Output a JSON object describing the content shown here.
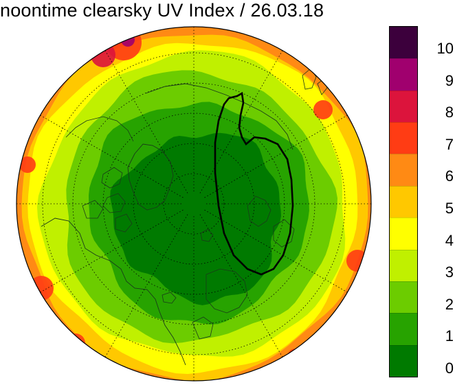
{
  "title": "noontime clearsky UV Index / 26.03.18",
  "legend": {
    "levels": [
      {
        "value": "0",
        "color": "#007a00"
      },
      {
        "value": "1",
        "color": "#27a300"
      },
      {
        "value": "2",
        "color": "#6ccc00"
      },
      {
        "value": "3",
        "color": "#c0f000"
      },
      {
        "value": "4",
        "color": "#ffff00"
      },
      {
        "value": "5",
        "color": "#ffc800"
      },
      {
        "value": "6",
        "color": "#ff8a14"
      },
      {
        "value": "7",
        "color": "#ff3c14"
      },
      {
        "value": "8",
        "color": "#dc143c"
      },
      {
        "value": "9",
        "color": "#a0006e"
      },
      {
        "value": "10",
        "color": "#3c003c"
      }
    ]
  },
  "map": {
    "projection": "north-polar-stereographic",
    "background": "#ffffff",
    "outline_color": "#000000",
    "graticule_color": "#000000"
  }
}
